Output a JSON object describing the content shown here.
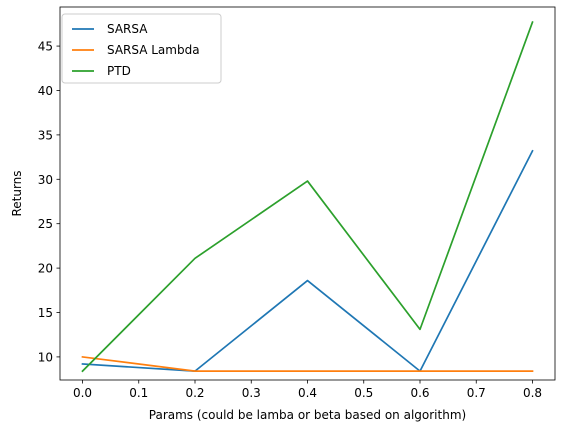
{
  "chart_data": {
    "type": "line",
    "title": "",
    "xlabel": "Params (could be lamba or beta based on algorithm)",
    "ylabel": "Returns",
    "x": [
      0.0,
      0.2,
      0.4,
      0.6,
      0.8
    ],
    "xlim": [
      -0.04,
      0.84
    ],
    "ylim": [
      7.4,
      49.4
    ],
    "xticks": [
      0.0,
      0.1,
      0.2,
      0.3,
      0.4,
      0.5,
      0.6,
      0.7,
      0.8
    ],
    "xtick_labels": [
      "0.0",
      "0.1",
      "0.2",
      "0.3",
      "0.4",
      "0.5",
      "0.6",
      "0.7",
      "0.8"
    ],
    "yticks": [
      10,
      15,
      20,
      25,
      30,
      35,
      40,
      45
    ],
    "ytick_labels": [
      "10",
      "15",
      "20",
      "25",
      "30",
      "35",
      "40",
      "45"
    ],
    "grid": false,
    "legend_position": "top-left",
    "series": [
      {
        "name": "SARSA",
        "color": "#1f77b4",
        "values": [
          9.2,
          8.4,
          18.6,
          8.4,
          33.2
        ]
      },
      {
        "name": "SARSA Lambda",
        "color": "#ff7f0e",
        "values": [
          10.0,
          8.4,
          8.4,
          8.4,
          8.4
        ]
      },
      {
        "name": "PTD",
        "color": "#2ca02c",
        "values": [
          8.4,
          21.1,
          29.8,
          13.1,
          47.7
        ]
      }
    ]
  }
}
